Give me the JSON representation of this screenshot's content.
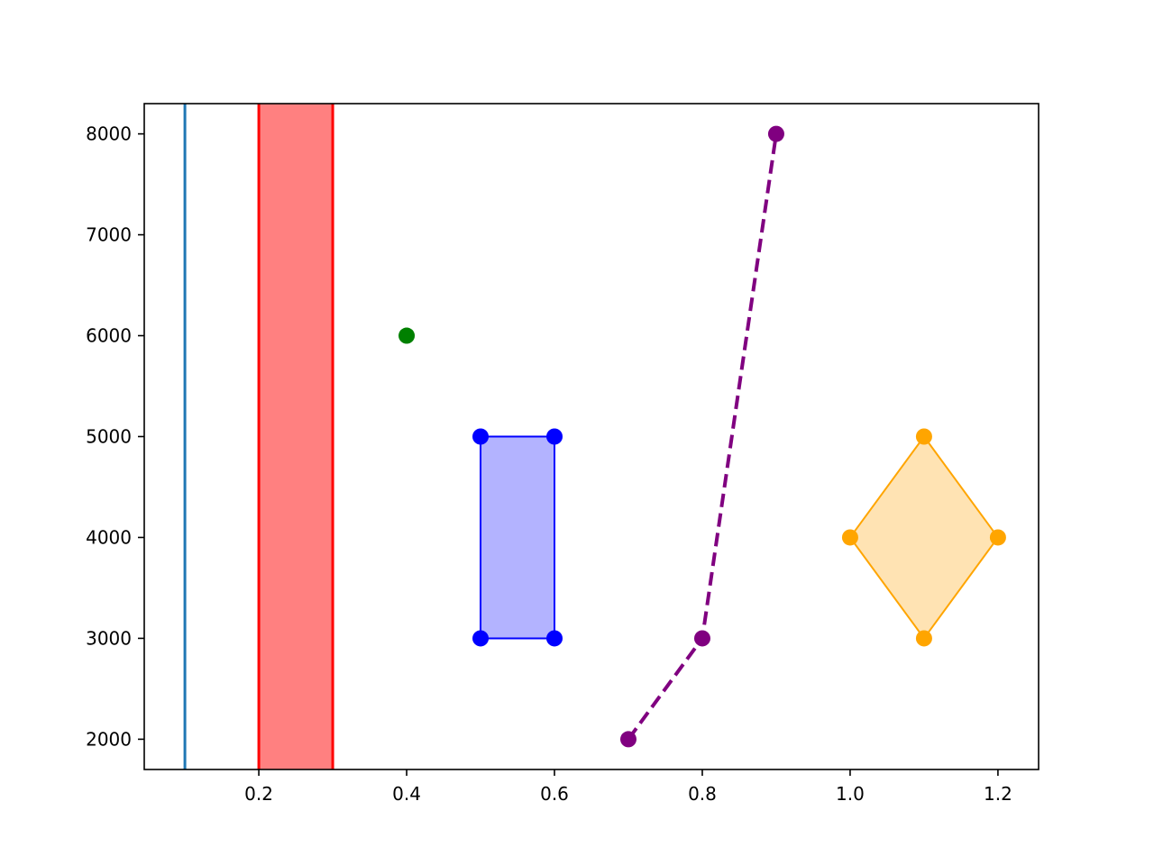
{
  "chart_data": {
    "type": "scatter",
    "title": "",
    "xlabel": "",
    "ylabel": "",
    "xlim": [
      0.045,
      1.255
    ],
    "ylim": [
      1700,
      8300
    ],
    "grid": false,
    "legend": "none",
    "x_ticks": [
      {
        "value": 0.2,
        "label": "0.2"
      },
      {
        "value": 0.4,
        "label": "0.4"
      },
      {
        "value": 0.6,
        "label": "0.6"
      },
      {
        "value": 0.8,
        "label": "0.8"
      },
      {
        "value": 1.0,
        "label": "1.0"
      },
      {
        "value": 1.2,
        "label": "1.2"
      }
    ],
    "y_ticks": [
      {
        "value": 2000,
        "label": "2000"
      },
      {
        "value": 3000,
        "label": "3000"
      },
      {
        "value": 4000,
        "label": "4000"
      },
      {
        "value": 5000,
        "label": "5000"
      },
      {
        "value": 6000,
        "label": "6000"
      },
      {
        "value": 7000,
        "label": "7000"
      },
      {
        "value": 8000,
        "label": "8000"
      }
    ],
    "vertical_line": {
      "x": 0.1,
      "color": "#1f77b4"
    },
    "vertical_span": {
      "x_start": 0.2,
      "x_end": 0.3,
      "fill_color": "#ff8080",
      "edge_color": "#ff0000"
    },
    "single_point": {
      "x": 0.4,
      "y": 6000,
      "color": "#008000"
    },
    "rectangle": {
      "color": "#0000ff",
      "fill_color": "#b3b3ff",
      "points": [
        {
          "x": 0.5,
          "y": 3000
        },
        {
          "x": 0.5,
          "y": 5000
        },
        {
          "x": 0.6,
          "y": 5000
        },
        {
          "x": 0.6,
          "y": 3000
        }
      ]
    },
    "dashed_line": {
      "color": "#800080",
      "points": [
        {
          "x": 0.7,
          "y": 2000
        },
        {
          "x": 0.8,
          "y": 3000
        },
        {
          "x": 0.9,
          "y": 8000
        }
      ]
    },
    "diamond": {
      "color": "#ffa500",
      "fill_color": "#ffe3b3",
      "points": [
        {
          "x": 1.0,
          "y": 4000
        },
        {
          "x": 1.1,
          "y": 5000
        },
        {
          "x": 1.2,
          "y": 4000
        },
        {
          "x": 1.1,
          "y": 3000
        }
      ]
    }
  }
}
